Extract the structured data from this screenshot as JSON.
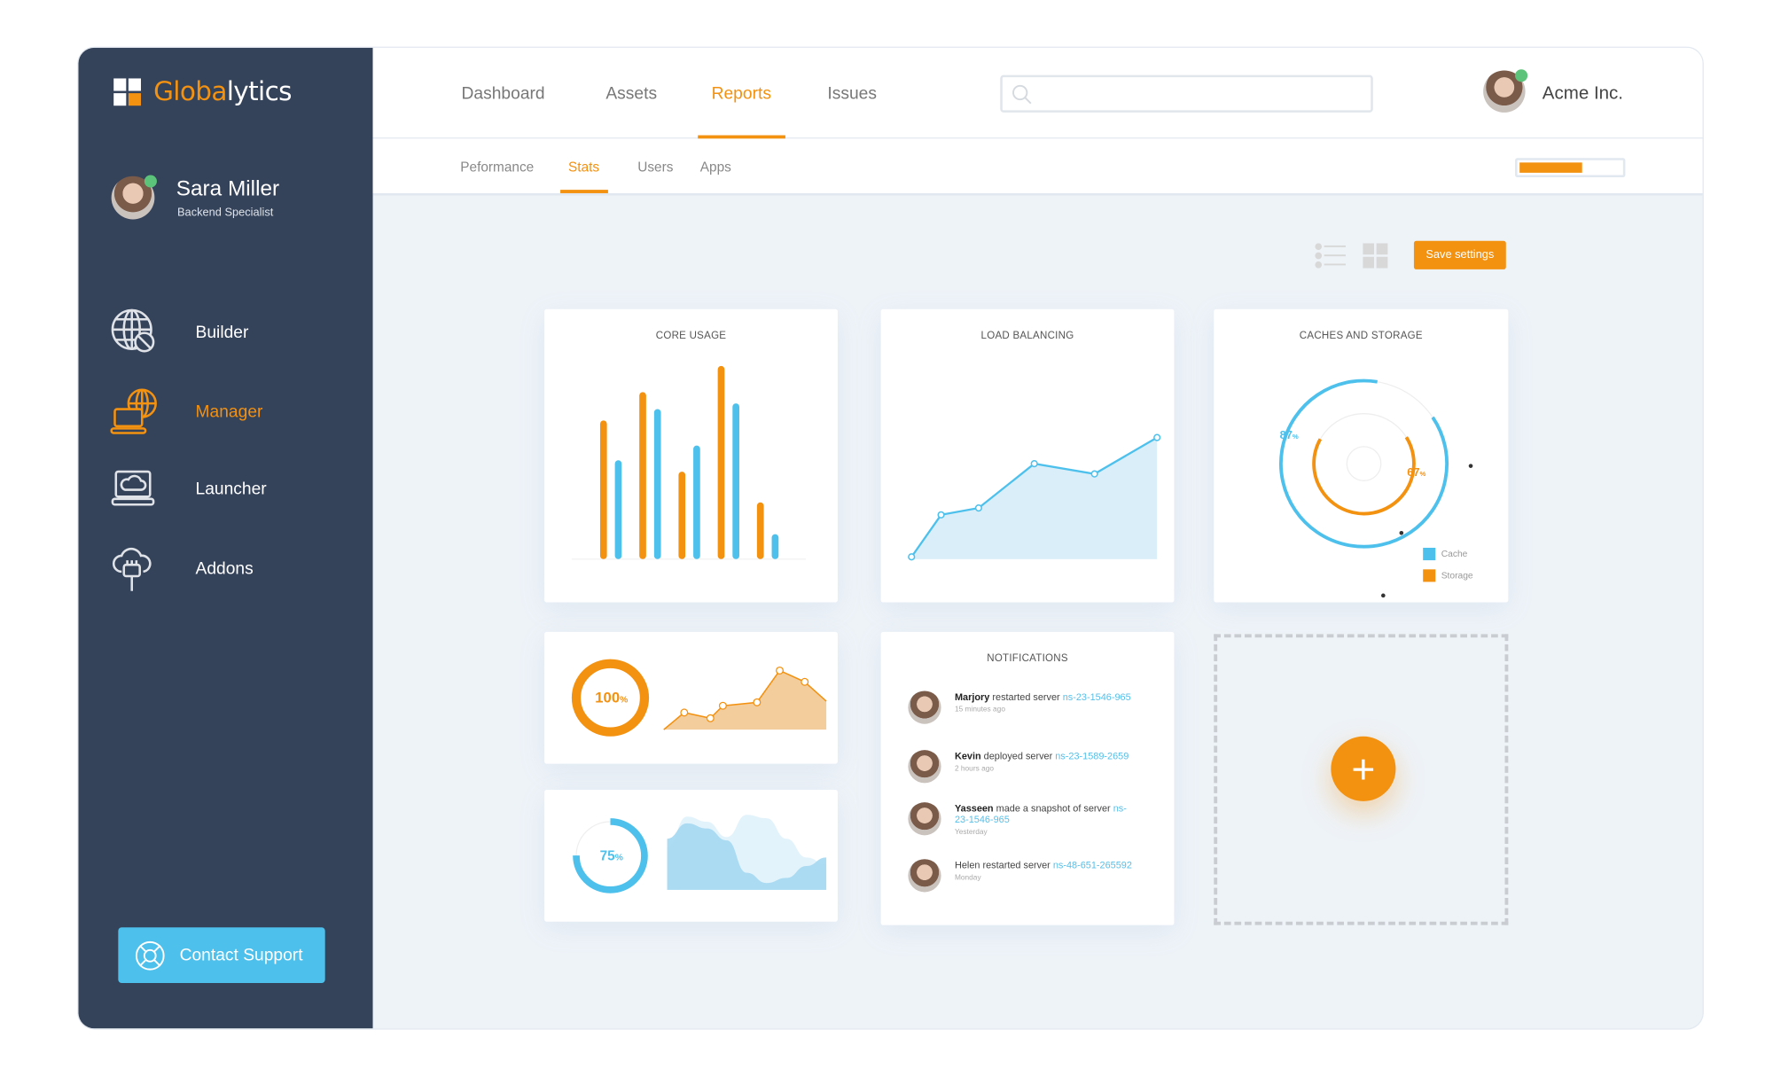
{
  "brand": {
    "name_part1": "Globa",
    "name_part2": "lytics",
    "accent": "#f39110",
    "secondary": "#4dc0ec"
  },
  "user": {
    "name": "Sara Miller",
    "role": "Backend Specialist",
    "status": "online"
  },
  "sidebar": {
    "items": [
      {
        "label": "Builder",
        "icon": "globe-icon",
        "active": false
      },
      {
        "label": "Manager",
        "icon": "laptop-globe-icon",
        "active": true
      },
      {
        "label": "Launcher",
        "icon": "laptop-cloud-icon",
        "active": false
      },
      {
        "label": "Addons",
        "icon": "cloud-plug-icon",
        "active": false
      }
    ],
    "support_label": "Contact Support",
    "support_icon": "lifebuoy-icon"
  },
  "topnav": {
    "tabs": [
      {
        "label": "Dashboard"
      },
      {
        "label": "Assets"
      },
      {
        "label": "Reports",
        "active": true
      },
      {
        "label": "Issues"
      }
    ],
    "search": {
      "placeholder": "",
      "value": ""
    },
    "account": "Acme Inc."
  },
  "subnav": {
    "tabs": [
      {
        "label": "Peformance"
      },
      {
        "label": "Stats",
        "active": true
      },
      {
        "label": "Users"
      },
      {
        "label": "Apps"
      }
    ],
    "progress_percent": 62
  },
  "toolbar": {
    "save_label": "Save settings",
    "view_list_icon": "list-view-icon",
    "view_grid_icon": "grid-view-icon"
  },
  "chart_data": [
    {
      "type": "bar",
      "title": "CORE USAGE",
      "series": [
        {
          "color": "#f39110",
          "values": [
            122,
            147,
            77,
            170,
            50
          ]
        },
        {
          "color": "#4dc0ec",
          "values": [
            87,
            132,
            100,
            137,
            22
          ]
        }
      ]
    },
    {
      "type": "area",
      "title": "LOAD BALANCING",
      "color": "#4dc0ec",
      "values": [
        2,
        39,
        45,
        84,
        75,
        107
      ]
    },
    {
      "type": "pie",
      "title": "CACHES AND STORAGE",
      "series": [
        {
          "name": "Cache",
          "value": 87,
          "label": "87",
          "color": "#4dc0ec"
        },
        {
          "name": "Storage",
          "value": 67,
          "label": "67",
          "color": "#f39110"
        }
      ]
    },
    {
      "type": "area",
      "gauge_value": 100,
      "gauge_label": "100",
      "color": "#f39110",
      "values": [
        0,
        15,
        10,
        21,
        24,
        52,
        42,
        25
      ]
    },
    {
      "type": "area",
      "gauge_value": 75,
      "gauge_label": "75",
      "color": "#4dc0ec",
      "series": [
        {
          "values": [
            60,
            78,
            72,
            58,
            20,
            8,
            14,
            28,
            38
          ]
        },
        {
          "values": [
            50,
            86,
            80,
            62,
            88,
            84,
            60,
            38,
            30
          ]
        }
      ]
    }
  ],
  "notifications": {
    "title": "NOTIFICATIONS",
    "items": [
      {
        "name": "Marjory",
        "action": " restarted server ",
        "server": "ns-23-1546-965",
        "time": "15 minutes ago",
        "bold": true
      },
      {
        "name": "Kevin",
        "action": " deployed server ",
        "server": "ns-23-1589-2659",
        "time": "2 hours ago",
        "bold": true
      },
      {
        "name": "Yasseen",
        "action": " made a snapshot of server ",
        "server": "ns-23-1546-965",
        "time": "Yesterday",
        "bold": true
      },
      {
        "name": "Helen",
        "action": " restarted server ",
        "server": "ns-48-651-265592",
        "time": "Monday",
        "bold": false
      }
    ]
  },
  "add_widget": {
    "label": "+",
    "icon": "plus-icon"
  }
}
